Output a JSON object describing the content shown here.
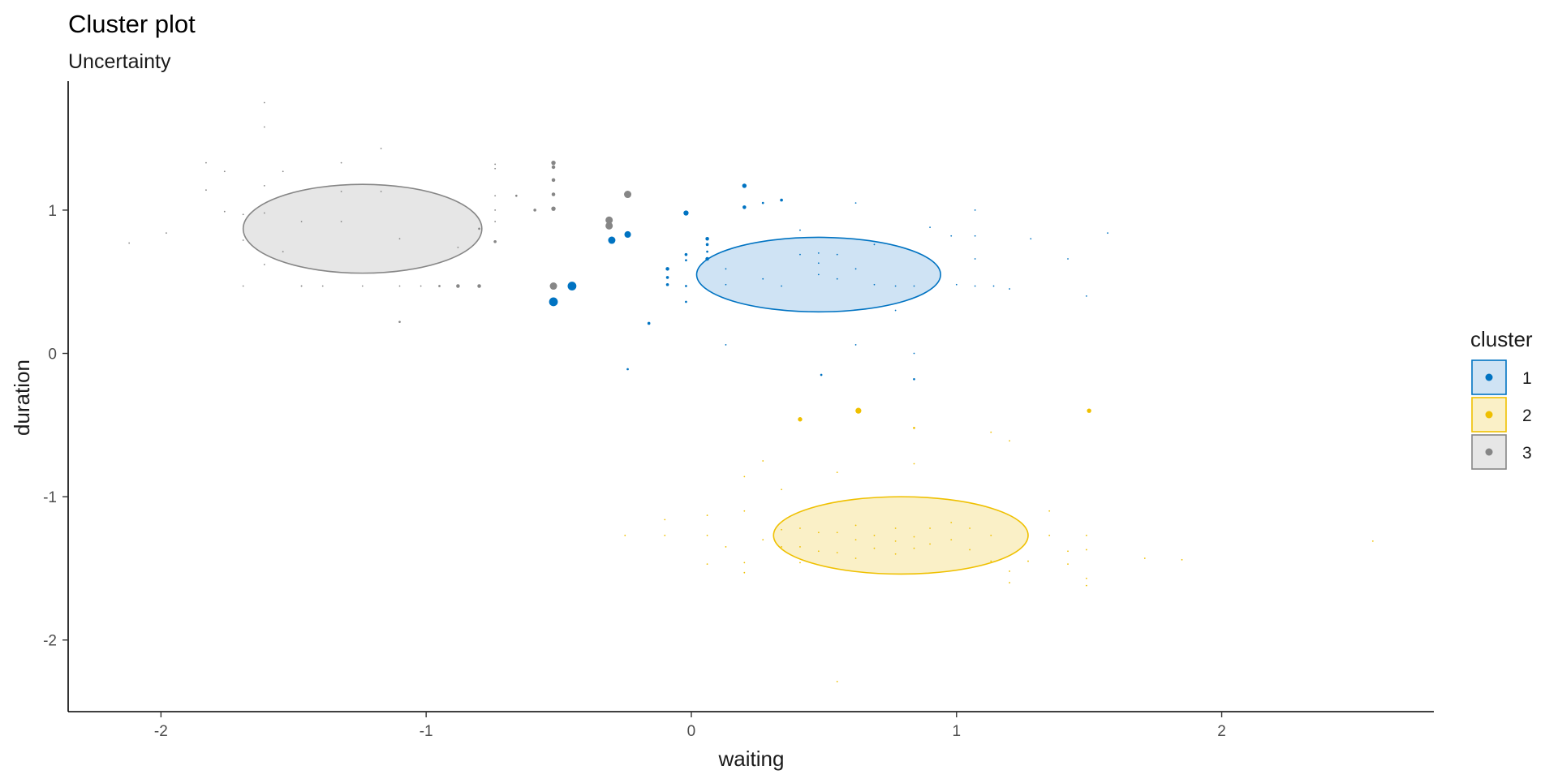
{
  "chart_data": {
    "type": "scatter",
    "title": "Cluster plot",
    "subtitle": "Uncertainty",
    "xlabel": "waiting",
    "ylabel": "duration",
    "xlim": [
      -2.35,
      2.8
    ],
    "ylim": [
      -2.5,
      1.9
    ],
    "xticks": [
      -2,
      -1,
      0,
      1,
      2
    ],
    "yticks": [
      -2,
      -1,
      0,
      1
    ],
    "grid": false,
    "legend_title": "cluster",
    "legend_position": "right",
    "series": [
      {
        "name": "1",
        "color": "#0073C2",
        "fill": "#CFE3F4",
        "ellipse": {
          "cx": 0.48,
          "cy": 0.55,
          "rx": 0.46,
          "ry": 0.26
        },
        "points": [
          [
            -0.52,
            0.36,
            6
          ],
          [
            -0.45,
            0.47,
            6
          ],
          [
            -0.3,
            0.79,
            5
          ],
          [
            -0.24,
            0.83,
            4.5
          ],
          [
            -0.02,
            0.98,
            3.5
          ],
          [
            0.2,
            1.17,
            3
          ],
          [
            0.2,
            1.02,
            2.5
          ],
          [
            0.27,
            1.05,
            1.5
          ],
          [
            0.34,
            1.07,
            2
          ],
          [
            0.62,
            1.05,
            1
          ],
          [
            -0.09,
            0.59,
            2.5
          ],
          [
            -0.09,
            0.53,
            2
          ],
          [
            -0.09,
            0.48,
            2
          ],
          [
            -0.02,
            0.69,
            2
          ],
          [
            -0.02,
            0.65,
            1.5
          ],
          [
            -0.02,
            0.47,
            1.5
          ],
          [
            -0.02,
            0.36,
            1.5
          ],
          [
            0.06,
            0.8,
            2.5
          ],
          [
            0.06,
            0.76,
            2
          ],
          [
            0.06,
            0.71,
            1.5
          ],
          [
            0.06,
            0.66,
            2.5
          ],
          [
            -0.16,
            0.21,
            2
          ],
          [
            -0.24,
            -0.11,
            1.5
          ],
          [
            0.13,
            0.06,
            1
          ],
          [
            0.13,
            0.59,
            1
          ],
          [
            0.13,
            0.48,
            1
          ],
          [
            0.27,
            0.52,
            1
          ],
          [
            0.34,
            0.47,
            1
          ],
          [
            0.41,
            0.86,
            1
          ],
          [
            0.41,
            0.69,
            1
          ],
          [
            0.48,
            0.7,
            1
          ],
          [
            0.48,
            0.63,
            1
          ],
          [
            0.48,
            0.55,
            1
          ],
          [
            0.55,
            0.69,
            1
          ],
          [
            0.55,
            0.52,
            1
          ],
          [
            0.62,
            0.59,
            1
          ],
          [
            0.69,
            0.76,
            1
          ],
          [
            0.69,
            0.48,
            1
          ],
          [
            0.77,
            0.47,
            1
          ],
          [
            0.77,
            0.3,
            1
          ],
          [
            0.84,
            0.47,
            1
          ],
          [
            0.84,
            0.0,
            1
          ],
          [
            0.84,
            -0.18,
            1.5
          ],
          [
            0.62,
            0.06,
            1
          ],
          [
            0.49,
            -0.15,
            1.5
          ],
          [
            0.9,
            0.88,
            1
          ],
          [
            0.98,
            0.82,
            1
          ],
          [
            1.0,
            0.48,
            1
          ],
          [
            1.07,
            0.66,
            1
          ],
          [
            1.07,
            0.47,
            1
          ],
          [
            1.07,
            1.0,
            1
          ],
          [
            1.07,
            0.82,
            1
          ],
          [
            1.14,
            0.47,
            1
          ],
          [
            1.2,
            0.45,
            1
          ],
          [
            1.28,
            0.8,
            1
          ],
          [
            1.42,
            0.66,
            1
          ],
          [
            1.49,
            0.4,
            1
          ],
          [
            1.57,
            0.84,
            1
          ]
        ]
      },
      {
        "name": "2",
        "color": "#EFC000",
        "fill": "#FAF0C7",
        "ellipse": {
          "cx": 0.79,
          "cy": -1.27,
          "rx": 0.48,
          "ry": 0.27
        },
        "points": [
          [
            0.63,
            -0.4,
            4
          ],
          [
            0.41,
            -0.46,
            3
          ],
          [
            1.5,
            -0.4,
            3
          ],
          [
            0.84,
            -0.52,
            1.5
          ],
          [
            1.13,
            -0.55,
            1
          ],
          [
            1.2,
            -0.61,
            1
          ],
          [
            0.27,
            -0.75,
            1
          ],
          [
            0.55,
            -0.83,
            1
          ],
          [
            0.84,
            -0.77,
            1
          ],
          [
            0.2,
            -0.86,
            1
          ],
          [
            0.34,
            -0.95,
            1
          ],
          [
            0.2,
            -1.1,
            1
          ],
          [
            -0.1,
            -1.16,
            1
          ],
          [
            0.06,
            -1.13,
            1
          ],
          [
            -0.25,
            -1.27,
            1
          ],
          [
            -0.1,
            -1.27,
            1
          ],
          [
            0.06,
            -1.27,
            1
          ],
          [
            0.13,
            -1.35,
            1
          ],
          [
            0.2,
            -1.46,
            1
          ],
          [
            0.2,
            -1.53,
            1
          ],
          [
            0.06,
            -1.47,
            1
          ],
          [
            0.27,
            -1.3,
            1
          ],
          [
            0.34,
            -1.23,
            1
          ],
          [
            0.34,
            -1.35,
            1
          ],
          [
            0.41,
            -1.22,
            1
          ],
          [
            0.41,
            -1.35,
            1
          ],
          [
            0.41,
            -1.46,
            1
          ],
          [
            0.48,
            -1.25,
            1
          ],
          [
            0.48,
            -1.38,
            1
          ],
          [
            0.55,
            -1.25,
            1
          ],
          [
            0.55,
            -1.39,
            1
          ],
          [
            0.62,
            -1.2,
            1
          ],
          [
            0.62,
            -1.3,
            1
          ],
          [
            0.62,
            -1.43,
            1
          ],
          [
            0.69,
            -1.27,
            1
          ],
          [
            0.69,
            -1.36,
            1
          ],
          [
            0.77,
            -1.22,
            1
          ],
          [
            0.77,
            -1.31,
            1
          ],
          [
            0.77,
            -1.4,
            1
          ],
          [
            0.84,
            -1.28,
            1
          ],
          [
            0.84,
            -1.36,
            1
          ],
          [
            0.9,
            -1.22,
            1
          ],
          [
            0.9,
            -1.33,
            1
          ],
          [
            0.98,
            -1.18,
            1
          ],
          [
            0.98,
            -1.3,
            1
          ],
          [
            1.05,
            -1.22,
            1
          ],
          [
            1.05,
            -1.37,
            1
          ],
          [
            1.13,
            -1.27,
            1
          ],
          [
            1.13,
            -1.45,
            1
          ],
          [
            1.2,
            -1.52,
            1
          ],
          [
            1.2,
            -1.6,
            1
          ],
          [
            1.27,
            -1.45,
            1
          ],
          [
            1.35,
            -1.27,
            1
          ],
          [
            1.35,
            -1.1,
            1
          ],
          [
            1.42,
            -1.38,
            1
          ],
          [
            1.42,
            -1.47,
            1
          ],
          [
            1.49,
            -1.27,
            1
          ],
          [
            1.49,
            -1.37,
            1
          ],
          [
            1.49,
            -1.57,
            1
          ],
          [
            1.49,
            -1.62,
            1
          ],
          [
            1.71,
            -1.43,
            1
          ],
          [
            1.85,
            -1.44,
            1
          ],
          [
            2.57,
            -1.31,
            1
          ],
          [
            0.55,
            -2.29,
            1
          ]
        ]
      },
      {
        "name": "3",
        "color": "#868686",
        "fill": "#E6E6E6",
        "ellipse": {
          "cx": -1.24,
          "cy": 0.87,
          "rx": 0.45,
          "ry": 0.31
        },
        "points": [
          [
            -0.24,
            1.11,
            5
          ],
          [
            -0.31,
            0.93,
            5
          ],
          [
            -0.31,
            0.89,
            5
          ],
          [
            -0.52,
            0.47,
            5
          ],
          [
            -0.52,
            1.33,
            3
          ],
          [
            -0.52,
            1.3,
            2.5
          ],
          [
            -0.52,
            1.21,
            2.5
          ],
          [
            -0.52,
            1.11,
            2.5
          ],
          [
            -0.52,
            1.01,
            3
          ],
          [
            -0.59,
            1.0,
            2
          ],
          [
            -0.66,
            1.1,
            1.5
          ],
          [
            -0.74,
            1.32,
            1
          ],
          [
            -0.74,
            1.29,
            1
          ],
          [
            -0.74,
            1.1,
            1
          ],
          [
            -0.74,
            1.0,
            1
          ],
          [
            -0.74,
            0.92,
            1
          ],
          [
            -0.74,
            0.78,
            2
          ],
          [
            -0.8,
            0.87,
            1.5
          ],
          [
            -0.8,
            0.47,
            2.5
          ],
          [
            -0.88,
            0.47,
            2.5
          ],
          [
            -0.88,
            0.74,
            1
          ],
          [
            -0.95,
            0.47,
            1.5
          ],
          [
            -1.02,
            0.47,
            1
          ],
          [
            -1.1,
            0.47,
            1
          ],
          [
            -1.1,
            0.22,
            1.5
          ],
          [
            -1.1,
            0.8,
            1
          ],
          [
            -1.17,
            1.43,
            1
          ],
          [
            -1.17,
            1.13,
            1
          ],
          [
            -1.24,
            0.47,
            1
          ],
          [
            -1.32,
            1.33,
            1
          ],
          [
            -1.32,
            1.13,
            1
          ],
          [
            -1.32,
            0.92,
            1
          ],
          [
            -1.39,
            0.47,
            1
          ],
          [
            -1.47,
            0.92,
            1
          ],
          [
            -1.47,
            0.47,
            1
          ],
          [
            -1.54,
            1.27,
            1
          ],
          [
            -1.54,
            0.71,
            1
          ],
          [
            -1.61,
            1.75,
            1
          ],
          [
            -1.61,
            1.58,
            1
          ],
          [
            -1.61,
            1.17,
            1
          ],
          [
            -1.61,
            0.98,
            1
          ],
          [
            -1.61,
            0.62,
            1
          ],
          [
            -1.69,
            0.97,
            1
          ],
          [
            -1.69,
            0.79,
            1
          ],
          [
            -1.69,
            0.47,
            1
          ],
          [
            -1.76,
            1.27,
            1
          ],
          [
            -1.76,
            0.99,
            1
          ],
          [
            -1.83,
            1.33,
            1
          ],
          [
            -1.83,
            1.14,
            1
          ],
          [
            -1.98,
            0.84,
            1
          ],
          [
            -2.12,
            0.77,
            1
          ],
          [
            -1.47,
            0.47,
            1
          ]
        ]
      }
    ]
  }
}
